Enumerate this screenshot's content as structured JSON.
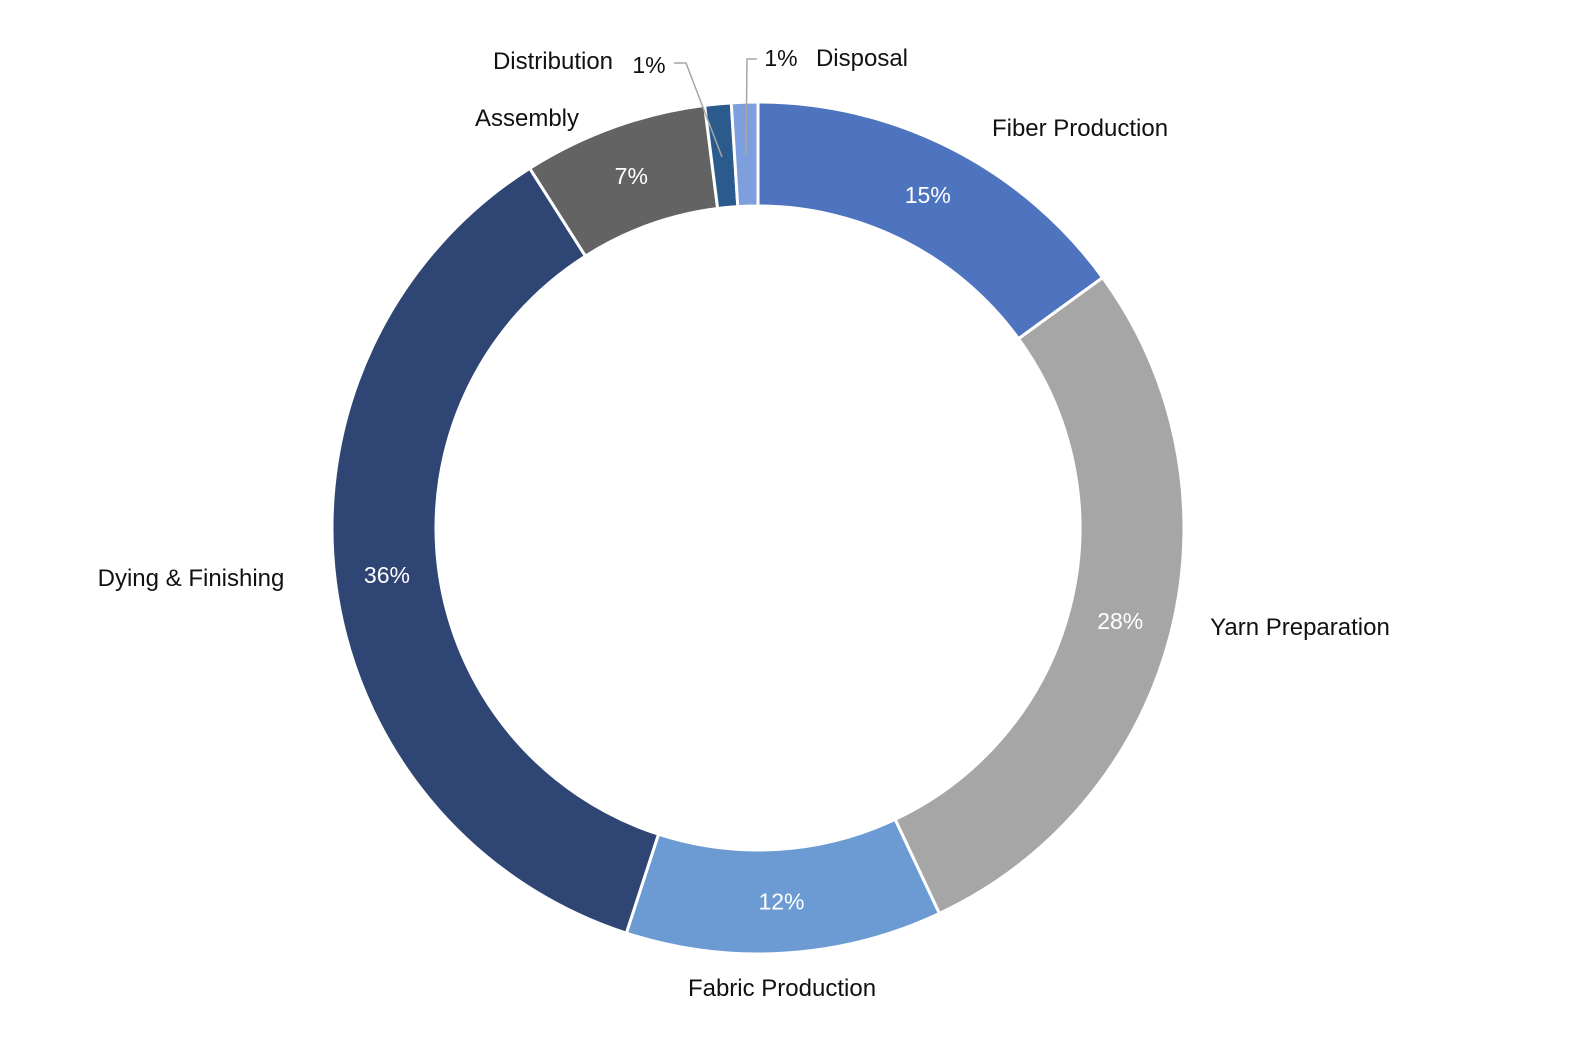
{
  "chart_data": {
    "type": "pie",
    "style": "donut",
    "legend": "none",
    "categories": [
      "Fiber Production",
      "Yarn Preparation",
      "Fabric Production",
      "Dying & Finishing",
      "Assembly",
      "Distribution",
      "Disposal"
    ],
    "values": [
      15,
      28,
      12,
      36,
      7,
      1,
      1
    ],
    "value_labels": [
      "15%",
      "28%",
      "12%",
      "36%",
      "7%",
      "1%",
      "1%"
    ],
    "colors": [
      "#4e74bf",
      "#a6a6a6",
      "#6b9bd2",
      "#2f4574",
      "#636363",
      "#2a5b8c",
      "#7e9fdd"
    ]
  }
}
